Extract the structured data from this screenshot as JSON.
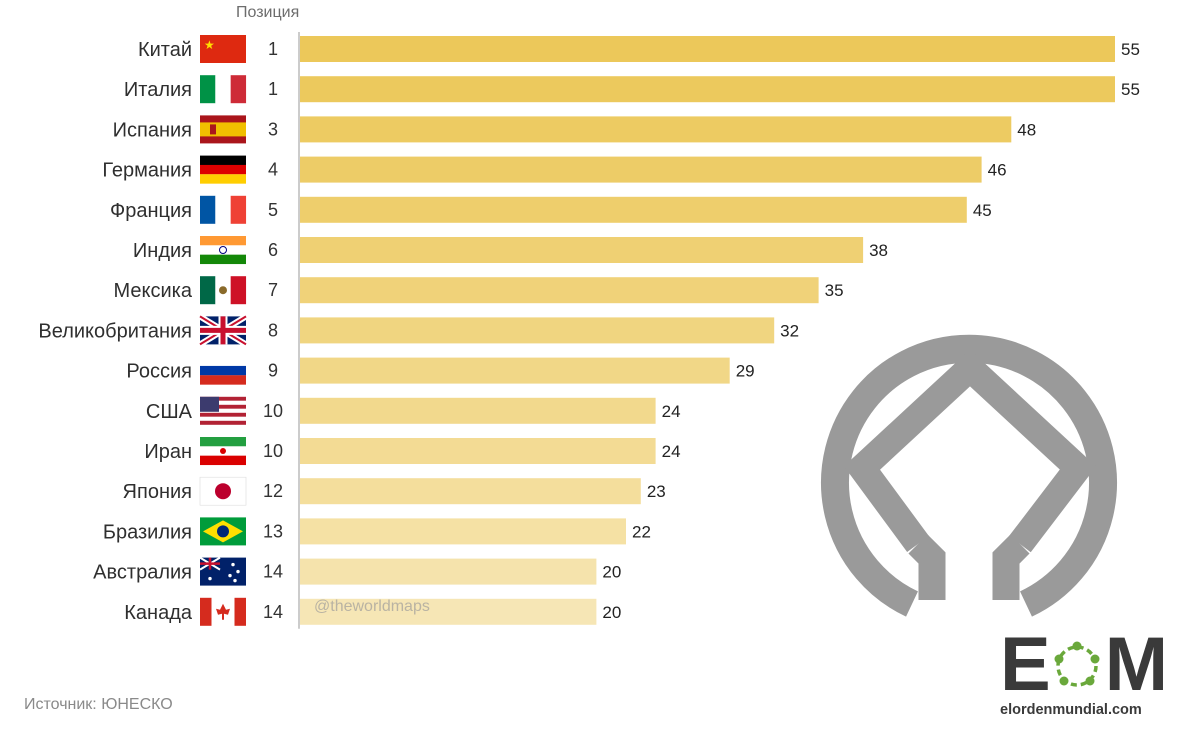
{
  "chart_data": {
    "type": "bar",
    "orientation": "horizontal",
    "column_header": "Позиция",
    "categories": [
      "Китай",
      "Италия",
      "Испания",
      "Германия",
      "Франция",
      "Индия",
      "Мексика",
      "Великобритания",
      "Россия",
      "США",
      "Иран",
      "Япония",
      "Бразилия",
      "Австралия",
      "Канада"
    ],
    "positions": [
      "1",
      "1",
      "3",
      "4",
      "5",
      "6",
      "7",
      "8",
      "9",
      "10",
      "10",
      "12",
      "13",
      "14",
      "14"
    ],
    "values": [
      55,
      55,
      48,
      46,
      45,
      38,
      35,
      32,
      29,
      24,
      24,
      23,
      22,
      20,
      20
    ],
    "xlim": [
      0,
      55
    ],
    "grid": false,
    "legend": "none",
    "bar_color": "#ecc85a",
    "flags": [
      "flag-china-icon",
      "flag-italy-icon",
      "flag-spain-icon",
      "flag-germany-icon",
      "flag-france-icon",
      "flag-india-icon",
      "flag-mexico-icon",
      "flag-uk-icon",
      "flag-russia-icon",
      "flag-usa-icon",
      "flag-iran-icon",
      "flag-japan-icon",
      "flag-brazil-icon",
      "flag-australia-icon",
      "flag-canada-icon"
    ]
  },
  "source_note": "Источник: ЮНЕСКО",
  "watermark": "@theworldmaps",
  "logo": {
    "letter_left": "E",
    "letter_right": "M",
    "tagline": "elordenmundial.com"
  },
  "emblem": "unesco-world-heritage-emblem"
}
